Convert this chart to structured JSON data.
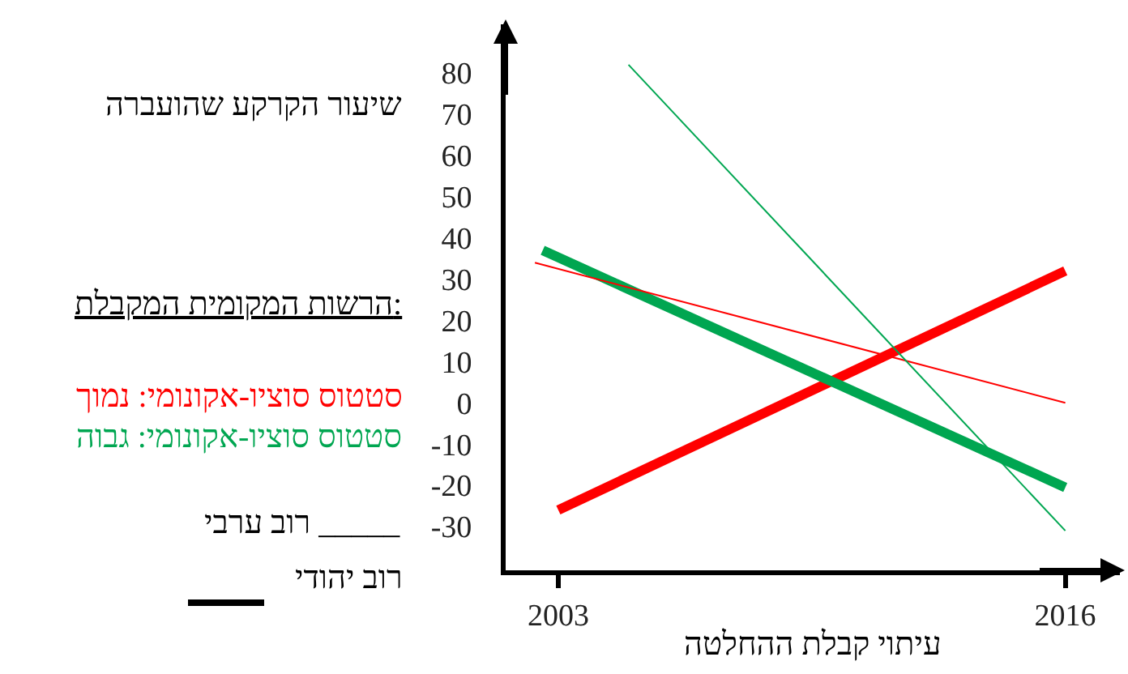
{
  "chart_data": {
    "type": "line",
    "ylabel": "שיעור הקרקע שהועברה",
    "xlabel": "עיתוי קבלת ההחלטה",
    "legend_title": "הרשות המקומית המקבלת:",
    "annotations": [
      "סטטוס סוציו-אקונומי: נמוך",
      "סטטוס סוציו-אקונומי: גבוה",
      "רוב ערבי _____",
      "רוב יהודי"
    ],
    "series": [
      {
        "color": "#ff0000",
        "x": [
          2003,
          2016
        ],
        "values": [
          -26,
          32
        ]
      },
      {
        "color": "#00a651",
        "x": [
          2002.6,
          2016
        ],
        "values": [
          37,
          -20.5
        ]
      },
      {
        "color": "#ff0000",
        "x": [
          2002.4,
          2016
        ],
        "values": [
          34,
          0
        ]
      },
      {
        "color": "#00a651",
        "x": [
          2004.8,
          2016
        ],
        "values": [
          82,
          -31
        ]
      }
    ],
    "xlim": [
      2001.65,
      2017.4
    ],
    "ylim": [
      -40.6,
      91.8
    ],
    "xticks": [
      2003,
      2016
    ],
    "yticks": [
      -30,
      -20,
      -10,
      0,
      10,
      20,
      30,
      40,
      50,
      60,
      70,
      80
    ],
    "marker": "none",
    "line_style": "solid"
  }
}
